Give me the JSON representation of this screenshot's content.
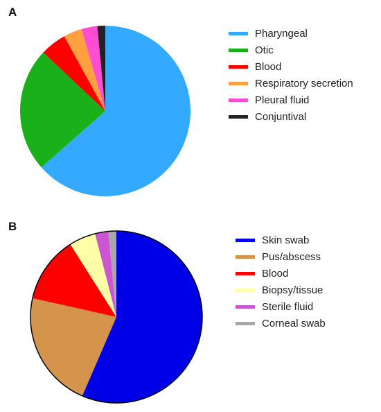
{
  "chart_data": [
    {
      "type": "pie",
      "panel_label": "A",
      "title": "",
      "legend_position": "right",
      "series": [
        {
          "name": "Pharyngeal",
          "value": 63.5,
          "color": "#33aaff"
        },
        {
          "name": "Otic",
          "value": 23.5,
          "color": "#1ab01a"
        },
        {
          "name": "Blood",
          "value": 5.0,
          "color": "#ff0000"
        },
        {
          "name": "Respiratory secretion",
          "value": 3.5,
          "color": "#ffa040"
        },
        {
          "name": "Pleural fluid",
          "value": 3.0,
          "color": "#ff4dd2"
        },
        {
          "name": "Conjuntival",
          "value": 1.5,
          "color": "#222222"
        }
      ]
    },
    {
      "type": "pie",
      "panel_label": "B",
      "title": "",
      "legend_position": "right",
      "series": [
        {
          "name": "Skin swab",
          "value": 56.5,
          "color": "#0000e6"
        },
        {
          "name": "Pus/abscess",
          "value": 22.0,
          "color": "#d4944b"
        },
        {
          "name": "Blood",
          "value": 12.5,
          "color": "#ff0000"
        },
        {
          "name": "Biopsy/tissue",
          "value": 5.0,
          "color": "#ffffa8"
        },
        {
          "name": "Sterile fluid",
          "value": 2.5,
          "color": "#cc55d4"
        },
        {
          "name": "Corneal swab",
          "value": 1.5,
          "color": "#a8a8a8"
        }
      ]
    }
  ]
}
